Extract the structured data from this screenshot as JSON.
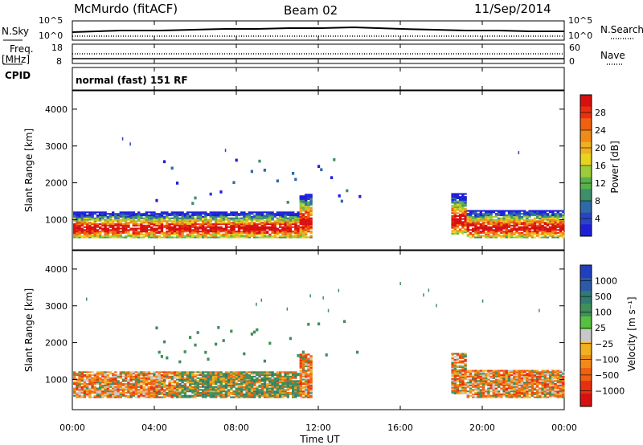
{
  "header": {
    "station": "McMurdo (fitACF)",
    "beam": "Beam 02",
    "date": "11/Sep/2014"
  },
  "strip": {
    "nsky_label": "N.Sky",
    "nsearch_label": "N.Search",
    "freq_label": "Freq.",
    "freq_unit": "[MHz]",
    "nave_label": "Nave",
    "cpid_label": "CPID",
    "cpid_value": "normal (fast) 151 RF",
    "noise_ticks": [
      "10^5",
      "10^0"
    ],
    "freq_ticks": [
      "18",
      "8"
    ],
    "nave_ticks": [
      "60",
      "0"
    ],
    "ticks_right_noise": [
      "10^5",
      "10^0"
    ]
  },
  "chart_data": [
    {
      "type": "heatmap",
      "panel": "power",
      "xlabel": "",
      "ylabel": "Slant Range [km]",
      "ylim": [
        180,
        4500
      ],
      "y_ticks": [
        "1000",
        "2000",
        "3000",
        "4000"
      ],
      "colorbar_label": "Power [dB]",
      "colorbar_ticks": [
        "4",
        "8",
        "12",
        "16",
        "20",
        "24",
        "28"
      ],
      "colors": [
        "#1f1fd8",
        "#2a44c8",
        "#2f6aa8",
        "#3d8f6a",
        "#58b24a",
        "#9ccc3a",
        "#e8d420",
        "#f0b020",
        "#f08a18",
        "#f06010",
        "#e83010",
        "#d81010"
      ]
    },
    {
      "type": "heatmap",
      "panel": "velocity",
      "xlabel": "Time UT",
      "ylabel": "Slant Range [km]",
      "ylim": [
        180,
        4500
      ],
      "y_ticks": [
        "1000",
        "2000",
        "3000",
        "4000"
      ],
      "x_ticks": [
        "00:00",
        "04:00",
        "08:00",
        "12:00",
        "16:00",
        "20:00",
        "00:00"
      ],
      "colorbar_label": "Velocity [m s⁻¹]",
      "colorbar_ticks": [
        "1000",
        "500",
        "100",
        "25",
        "−25",
        "−100",
        "−500",
        "−1000"
      ],
      "colors": [
        "#2040c0",
        "#2a5aa8",
        "#2f7a72",
        "#3f8f5a",
        "#58c040",
        "#c8c8c8",
        "#f0b020",
        "#f08a18",
        "#f06010",
        "#e83010",
        "#d81010"
      ]
    }
  ]
}
